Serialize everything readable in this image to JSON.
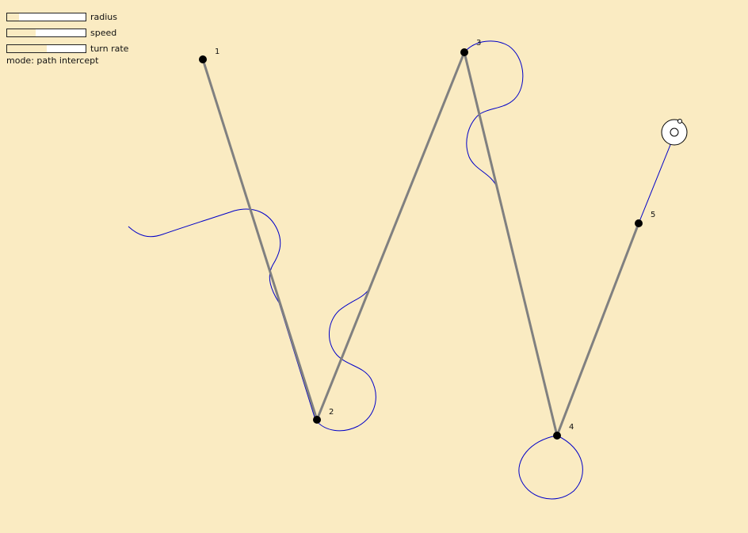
{
  "controls": {
    "sliders": [
      {
        "label": "radius",
        "value": 0.15
      },
      {
        "label": "speed",
        "value": 0.36
      },
      {
        "label": "turn rate",
        "value": 0.5
      }
    ],
    "mode_prefix": "mode:",
    "mode": "path intercept"
  },
  "waypoints": [
    {
      "label": "1"
    },
    {
      "label": "2"
    },
    {
      "label": "3"
    },
    {
      "label": "4"
    },
    {
      "label": "5"
    }
  ],
  "colors": {
    "background": "#FAEBC2",
    "path": "#808080",
    "trail": "#0000C8",
    "waypoint": "#000000"
  }
}
